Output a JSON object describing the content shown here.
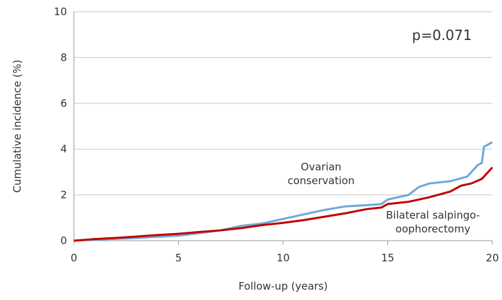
{
  "chart_data": {
    "type": "line",
    "xlabel": "Follow-up (years)",
    "ylabel": "Cumulative incidence (%)",
    "annotation": "p=0.071",
    "xlim": [
      0,
      20
    ],
    "xticks": [
      0,
      5,
      10,
      15,
      20
    ],
    "ylim": [
      0,
      10
    ],
    "yticks": [
      0,
      2,
      4,
      6,
      8,
      10
    ],
    "grid": true,
    "series": [
      {
        "name": "Ovarian conservation",
        "color": "#6fa8d6",
        "x": [
          0,
          1,
          2,
          3,
          4,
          5,
          6,
          7,
          8,
          9,
          10,
          11,
          12,
          13,
          14,
          14.7,
          15,
          16,
          16.5,
          17,
          18,
          18.8,
          19.3,
          19.5,
          19.6,
          20
        ],
        "values": [
          0,
          0.05,
          0.08,
          0.12,
          0.17,
          0.22,
          0.33,
          0.45,
          0.65,
          0.75,
          0.95,
          1.15,
          1.35,
          1.5,
          1.55,
          1.6,
          1.8,
          2.0,
          2.35,
          2.5,
          2.6,
          2.8,
          3.3,
          3.4,
          4.1,
          4.3
        ]
      },
      {
        "name": "Bilateral salpingo-oophorectomy",
        "color": "#c00000",
        "x": [
          0,
          1,
          2,
          3,
          4,
          5,
          6,
          7,
          8,
          9,
          10,
          11,
          12,
          13,
          14,
          14.7,
          15,
          16,
          17,
          18,
          18.5,
          19,
          19.5,
          20
        ],
        "values": [
          0,
          0.07,
          0.12,
          0.18,
          0.25,
          0.3,
          0.38,
          0.45,
          0.55,
          0.68,
          0.78,
          0.9,
          1.05,
          1.2,
          1.38,
          1.45,
          1.6,
          1.7,
          1.9,
          2.15,
          2.4,
          2.5,
          2.7,
          3.2
        ]
      }
    ]
  }
}
